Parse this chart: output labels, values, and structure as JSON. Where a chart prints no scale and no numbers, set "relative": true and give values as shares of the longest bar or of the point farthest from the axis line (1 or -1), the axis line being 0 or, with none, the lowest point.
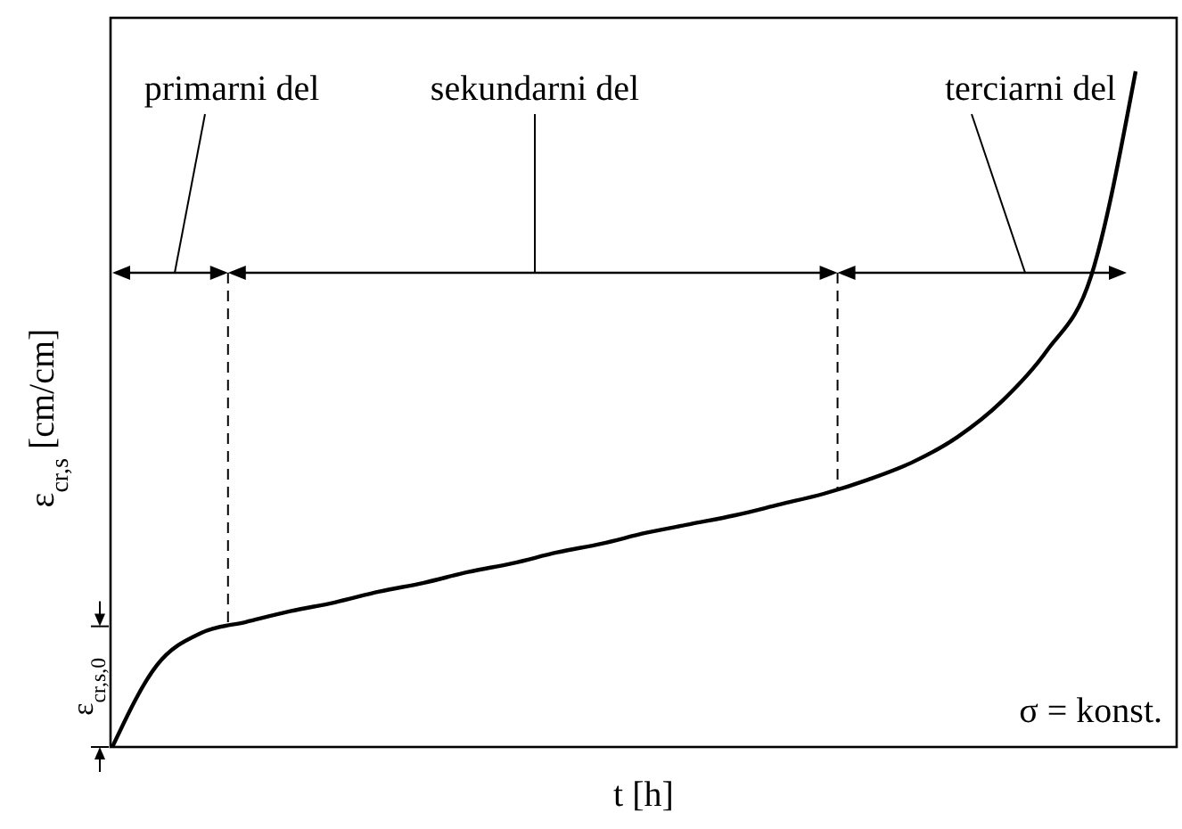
{
  "chart_data": {
    "type": "line",
    "relative": true,
    "xlabel": "t [h]",
    "ylabel": "ε$_{cr,s}$ [cm/cm]",
    "color": "#000000",
    "categories": [
      null,
      null,
      null,
      null,
      null,
      null,
      null,
      null,
      null,
      null,
      null,
      null,
      null,
      null,
      null,
      null,
      null,
      null,
      null,
      null,
      null,
      null,
      null,
      null
    ],
    "values": [
      0,
      0.121,
      0.169,
      0.185,
      0.201,
      0.214,
      0.23,
      0.243,
      0.259,
      0.272,
      0.288,
      0.301,
      0.317,
      0.33,
      0.343,
      0.359,
      0.375,
      0.396,
      0.422,
      0.459,
      0.512,
      0.586,
      0.697,
      1
    ],
    "annotations": [
      "primarni del",
      "sekundarni del",
      "terciarni del",
      "ε$_{cr,s,0}$",
      "σ = konst."
    ]
  }
}
